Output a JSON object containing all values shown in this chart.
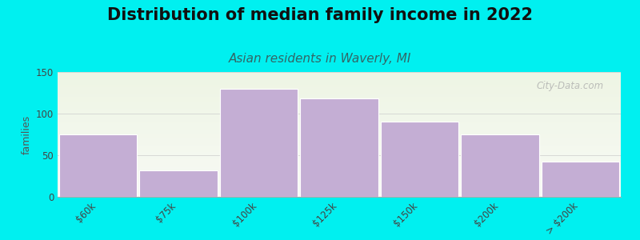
{
  "title": "Distribution of median family income in 2022",
  "subtitle": "Asian residents in Waverly, MI",
  "ylabel": "families",
  "categories": [
    "$60k",
    "$75k",
    "$100k",
    "$125k",
    "$150k",
    "$200k",
    "> $200k"
  ],
  "values": [
    75,
    32,
    130,
    118,
    90,
    75,
    42
  ],
  "bar_color": "#c4aed4",
  "bar_edgecolor": "#ffffff",
  "background_color": "#00f0f0",
  "plot_bg_color_top": "#eef5e4",
  "plot_bg_color_bottom": "#f8faf5",
  "ylim": [
    0,
    150
  ],
  "yticks": [
    0,
    50,
    100,
    150
  ],
  "watermark": "City-Data.com",
  "title_fontsize": 15,
  "subtitle_fontsize": 11,
  "ylabel_fontsize": 9,
  "tick_fontsize": 8.5
}
